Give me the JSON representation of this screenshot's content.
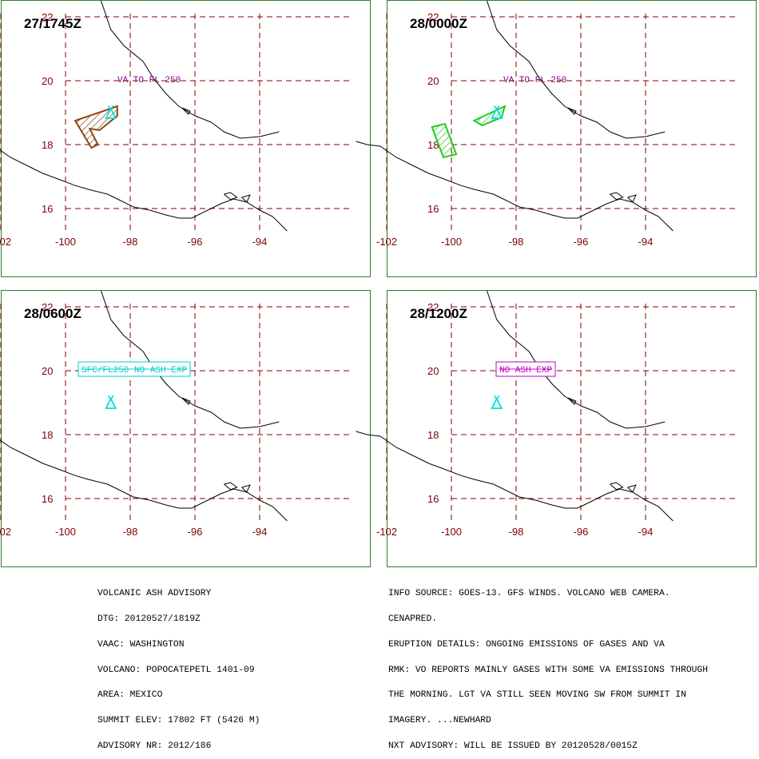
{
  "panels": [
    {
      "timestamp": "27/1745Z",
      "note": {
        "text": "VA TO FL 250",
        "style": "plain",
        "color": "#800080"
      },
      "ash_polygons": [
        {
          "color": "#8b4513",
          "points": [
            [
              -98.4,
              19.2
            ],
            [
              -99.7,
              18.75
            ],
            [
              -99.2,
              17.9
            ],
            [
              -99.0,
              18.0
            ],
            [
              -99.25,
              18.5
            ],
            [
              -98.95,
              18.45
            ],
            [
              -98.4,
              18.9
            ]
          ]
        }
      ]
    },
    {
      "timestamp": "28/0000Z",
      "note": {
        "text": "VA TO FL 250",
        "style": "plain",
        "color": "#800080"
      },
      "ash_polygons": [
        {
          "color": "#22cc22",
          "points": [
            [
              -100.6,
              18.55
            ],
            [
              -100.2,
              18.65
            ],
            [
              -99.85,
              17.7
            ],
            [
              -100.25,
              17.6
            ]
          ]
        },
        {
          "color": "#22cc22",
          "points": [
            [
              -98.35,
              19.2
            ],
            [
              -99.3,
              18.75
            ],
            [
              -99.05,
              18.6
            ],
            [
              -98.45,
              18.85
            ]
          ]
        }
      ]
    },
    {
      "timestamp": "28/0600Z",
      "note": {
        "text": "SFC/FL250 NO ASH EXP",
        "style": "boxed",
        "color": "#00cccc"
      },
      "ash_polygons": []
    },
    {
      "timestamp": "28/1200Z",
      "note": {
        "text": "NO ASH EXP",
        "style": "boxed",
        "color": "#c000c0"
      },
      "ash_polygons": []
    }
  ],
  "map": {
    "lon_ticks": [
      -102,
      -100,
      -98,
      -96,
      -94
    ],
    "lat_ticks": [
      16,
      18,
      20,
      22
    ],
    "lon_labels": [
      "-102",
      "-100",
      "-98",
      "-96",
      "-94"
    ],
    "lat_labels": [
      "16",
      "18",
      "20",
      "22"
    ],
    "volcano_lon": -98.6,
    "volcano_lat": 19.0,
    "colors": {
      "grid": "#800000",
      "coast": "#000000",
      "volcano": "#00dddd",
      "border": "#2e7d32"
    }
  },
  "advisory": {
    "lines": [
      "VOLCANIC ASH ADVISORY",
      "DTG: 20120527/1819Z",
      "VAAC: WASHINGTON",
      "VOLCANO: POPOCATEPETL 1401-09",
      "AREA: MEXICO",
      "SUMMIT ELEV: 17802 FT (5426 M)",
      "ADVISORY NR: 2012/186"
    ]
  },
  "info": {
    "lines": [
      "INFO SOURCE: GOES-13. GFS WINDS. VOLCANO WEB CAMERA.",
      "CENAPRED.",
      "ERUPTION DETAILS: ONGOING EMISSIONS OF GASES AND VA",
      "RMK: VO REPORTS MAINLY GASES WITH SOME VA EMISSIONS THROUGH",
      "THE MORNING. LGT VA STILL SEEN MOVING SW FROM SUMMIT IN",
      "IMAGERY. ...NEWHARD",
      "NXT ADVISORY: WILL BE ISSUED BY 20120528/0015Z"
    ]
  }
}
